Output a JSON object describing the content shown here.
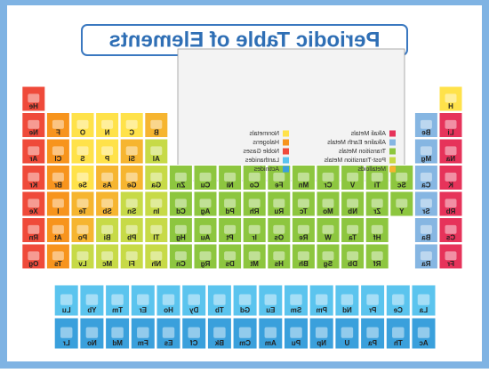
{
  "header": {
    "title": "Periodic Table of Elements"
  },
  "legend": [
    {
      "name": "Alkali Metals",
      "color": "#e6335a"
    },
    {
      "name": "Alkaline Earth Metals",
      "color": "#86b6e2"
    },
    {
      "name": "Transition Metals",
      "color": "#8dc63f"
    },
    {
      "name": "Post-Transition Metals",
      "color": "#c7da47"
    },
    {
      "name": "Metalloids",
      "color": "#f6b530"
    },
    {
      "name": "Nonmetals",
      "color": "#ffe24a"
    },
    {
      "name": "Halogens",
      "color": "#f7941d"
    },
    {
      "name": "Noble Gases",
      "color": "#ef4a3a"
    },
    {
      "name": "Lanthanides",
      "color": "#5bc4ee"
    },
    {
      "name": "Actinides",
      "color": "#3aa0dc"
    }
  ],
  "table": {
    "rows": [
      [
        {
          "s": "H",
          "c": 5
        },
        null,
        null,
        null,
        null,
        null,
        null,
        null,
        null,
        null,
        null,
        null,
        null,
        null,
        null,
        null,
        null,
        {
          "s": "He",
          "c": 7
        }
      ],
      [
        {
          "s": "Li",
          "c": 0
        },
        {
          "s": "Be",
          "c": 1
        },
        null,
        null,
        null,
        null,
        null,
        null,
        null,
        null,
        null,
        null,
        {
          "s": "B",
          "c": 4
        },
        {
          "s": "C",
          "c": 5
        },
        {
          "s": "N",
          "c": 5
        },
        {
          "s": "O",
          "c": 5
        },
        {
          "s": "F",
          "c": 6
        },
        {
          "s": "Ne",
          "c": 7
        }
      ],
      [
        {
          "s": "Na",
          "c": 0
        },
        {
          "s": "Mg",
          "c": 1
        },
        null,
        null,
        null,
        null,
        null,
        null,
        null,
        null,
        null,
        null,
        {
          "s": "Al",
          "c": 3
        },
        {
          "s": "Si",
          "c": 4
        },
        {
          "s": "P",
          "c": 5
        },
        {
          "s": "S",
          "c": 5
        },
        {
          "s": "Cl",
          "c": 6
        },
        {
          "s": "Ar",
          "c": 7
        }
      ],
      [
        {
          "s": "K",
          "c": 0
        },
        {
          "s": "Ca",
          "c": 1
        },
        {
          "s": "Sc",
          "c": 2
        },
        {
          "s": "Ti",
          "c": 2
        },
        {
          "s": "V",
          "c": 2
        },
        {
          "s": "Cr",
          "c": 2
        },
        {
          "s": "Mn",
          "c": 2
        },
        {
          "s": "Fe",
          "c": 2
        },
        {
          "s": "Co",
          "c": 2
        },
        {
          "s": "Ni",
          "c": 2
        },
        {
          "s": "Cu",
          "c": 2
        },
        {
          "s": "Zn",
          "c": 2
        },
        {
          "s": "Ga",
          "c": 3
        },
        {
          "s": "Ge",
          "c": 4
        },
        {
          "s": "As",
          "c": 4
        },
        {
          "s": "Se",
          "c": 5
        },
        {
          "s": "Br",
          "c": 6
        },
        {
          "s": "Kr",
          "c": 7
        }
      ],
      [
        {
          "s": "Rb",
          "c": 0
        },
        {
          "s": "Sr",
          "c": 1
        },
        {
          "s": "Y",
          "c": 2
        },
        {
          "s": "Zr",
          "c": 2
        },
        {
          "s": "Nb",
          "c": 2
        },
        {
          "s": "Mo",
          "c": 2
        },
        {
          "s": "Tc",
          "c": 2
        },
        {
          "s": "Ru",
          "c": 2
        },
        {
          "s": "Rh",
          "c": 2
        },
        {
          "s": "Pd",
          "c": 2
        },
        {
          "s": "Ag",
          "c": 2
        },
        {
          "s": "Cd",
          "c": 2
        },
        {
          "s": "In",
          "c": 3
        },
        {
          "s": "Sn",
          "c": 3
        },
        {
          "s": "Sb",
          "c": 4
        },
        {
          "s": "Te",
          "c": 4
        },
        {
          "s": "I",
          "c": 6
        },
        {
          "s": "Xe",
          "c": 7
        }
      ],
      [
        {
          "s": "Cs",
          "c": 0
        },
        {
          "s": "Ba",
          "c": 1
        },
        null,
        {
          "s": "Hf",
          "c": 2
        },
        {
          "s": "Ta",
          "c": 2
        },
        {
          "s": "W",
          "c": 2
        },
        {
          "s": "Re",
          "c": 2
        },
        {
          "s": "Os",
          "c": 2
        },
        {
          "s": "Ir",
          "c": 2
        },
        {
          "s": "Pt",
          "c": 2
        },
        {
          "s": "Au",
          "c": 2
        },
        {
          "s": "Hg",
          "c": 2
        },
        {
          "s": "Tl",
          "c": 3
        },
        {
          "s": "Pb",
          "c": 3
        },
        {
          "s": "Bi",
          "c": 3
        },
        {
          "s": "Po",
          "c": 4
        },
        {
          "s": "At",
          "c": 6
        },
        {
          "s": "Rn",
          "c": 7
        }
      ],
      [
        {
          "s": "Fr",
          "c": 0
        },
        {
          "s": "Ra",
          "c": 1
        },
        null,
        {
          "s": "Rf",
          "c": 2
        },
        {
          "s": "Db",
          "c": 2
        },
        {
          "s": "Sg",
          "c": 2
        },
        {
          "s": "Bh",
          "c": 2
        },
        {
          "s": "Hs",
          "c": 2
        },
        {
          "s": "Mt",
          "c": 2
        },
        {
          "s": "Ds",
          "c": 2
        },
        {
          "s": "Rg",
          "c": 2
        },
        {
          "s": "Cn",
          "c": 2
        },
        {
          "s": "Nh",
          "c": 3
        },
        {
          "s": "Fl",
          "c": 3
        },
        {
          "s": "Mc",
          "c": 3
        },
        {
          "s": "Lv",
          "c": 3
        },
        {
          "s": "Ts",
          "c": 6
        },
        {
          "s": "Og",
          "c": 7
        }
      ]
    ],
    "f_block": [
      [
        {
          "s": "La",
          "c": 8
        },
        {
          "s": "Ce",
          "c": 8
        },
        {
          "s": "Pr",
          "c": 8
        },
        {
          "s": "Nd",
          "c": 8
        },
        {
          "s": "Pm",
          "c": 8
        },
        {
          "s": "Sm",
          "c": 8
        },
        {
          "s": "Eu",
          "c": 8
        },
        {
          "s": "Gd",
          "c": 8
        },
        {
          "s": "Tb",
          "c": 8
        },
        {
          "s": "Dy",
          "c": 8
        },
        {
          "s": "Ho",
          "c": 8
        },
        {
          "s": "Er",
          "c": 8
        },
        {
          "s": "Tm",
          "c": 8
        },
        {
          "s": "Yb",
          "c": 8
        },
        {
          "s": "Lu",
          "c": 8
        }
      ],
      [
        {
          "s": "Ac",
          "c": 9
        },
        {
          "s": "Th",
          "c": 9
        },
        {
          "s": "Pa",
          "c": 9
        },
        {
          "s": "U",
          "c": 9
        },
        {
          "s": "Np",
          "c": 9
        },
        {
          "s": "Pu",
          "c": 9
        },
        {
          "s": "Am",
          "c": 9
        },
        {
          "s": "Cm",
          "c": 9
        },
        {
          "s": "Bk",
          "c": 9
        },
        {
          "s": "Cf",
          "c": 9
        },
        {
          "s": "Es",
          "c": 9
        },
        {
          "s": "Fm",
          "c": 9
        },
        {
          "s": "Md",
          "c": 9
        },
        {
          "s": "No",
          "c": 9
        },
        {
          "s": "Lr",
          "c": 9
        }
      ]
    ]
  }
}
